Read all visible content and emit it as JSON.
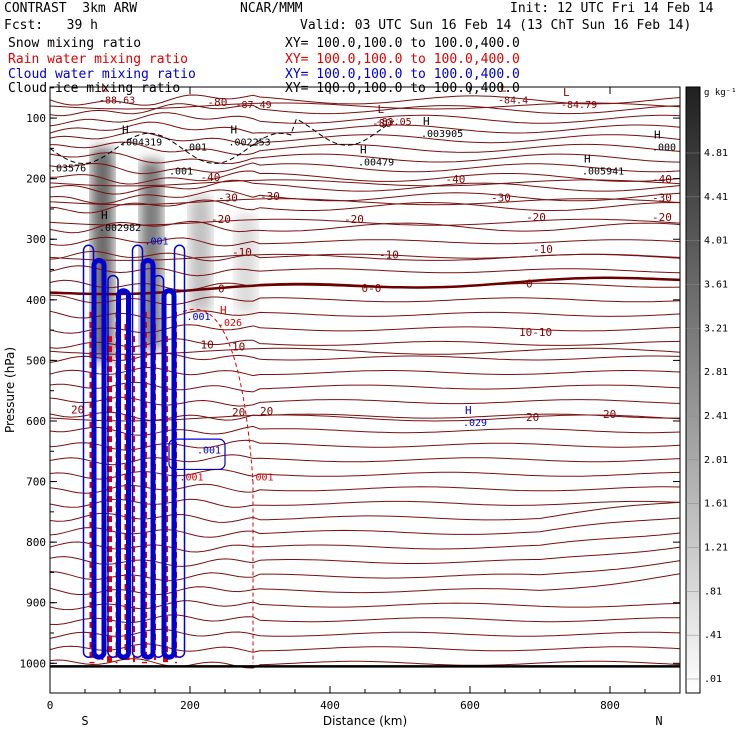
{
  "header": {
    "model": "CONTRAST  3km ARW",
    "forecast": "Fcst:   39 h",
    "center": "NCAR/MMM",
    "init": "Init: 12 UTC Fri 14 Feb 14",
    "valid": "Valid: 03 UTC Sun 16 Feb 14 (13 ChT Sun 16 Feb 14)"
  },
  "fields": [
    {
      "label": "Snow mixing ratio",
      "xy": "XY= 100.0,100.0 to 100.0,400.0",
      "color": "#000000"
    },
    {
      "label": "Rain water mixing ratio",
      "xy": "XY= 100.0,100.0 to 100.0,400.0",
      "color": "#e00000"
    },
    {
      "label": "Cloud water mixing ratio",
      "xy": "XY= 100.0,100.0 to 100.0,400.0",
      "color": "#0000d0"
    },
    {
      "label": "Cloud ice mixing ratio",
      "xy": "XY= 100.0,100.0 to 100.0,400.0",
      "color": "#000000"
    }
  ],
  "chart_data": {
    "type": "contour",
    "xlabel": "Distance (km)",
    "ylabel": "Pressure (hPa)",
    "xlim": [
      0,
      900
    ],
    "ylim": [
      50,
      1050
    ],
    "x_ticks": [
      0,
      200,
      400,
      600,
      800
    ],
    "y_ticks": [
      100,
      200,
      300,
      400,
      500,
      600,
      700,
      800,
      900,
      1000
    ],
    "x_endpoints": [
      "S",
      "N"
    ],
    "colorbar": {
      "unit": "g kg⁻¹",
      "levels": [
        "4.81",
        "4.41",
        "4.01",
        "3.61",
        "3.21",
        "2.81",
        "2.41",
        "2.01",
        "1.61",
        "1.21",
        ".81",
        ".41",
        ".01"
      ]
    },
    "temperature_contours": [
      {
        "label": "-80",
        "p": 80
      },
      {
        "label": "-40",
        "p": 207
      },
      {
        "label": "-30",
        "p": 238
      },
      {
        "label": "-20",
        "p": 272
      },
      {
        "label": "-10",
        "p": 330
      },
      {
        "label": "0",
        "p": 388
      },
      {
        "label": "10",
        "p": 485
      },
      {
        "label": "20",
        "p": 595
      }
    ],
    "contour_labels": [
      {
        "text": "-80",
        "x": 225,
        "p": 80,
        "color": "#800000"
      },
      {
        "text": "-80",
        "x": 460,
        "p": 115,
        "color": "#800000"
      },
      {
        "text": "-40",
        "x": 215,
        "p": 204,
        "color": "#800000"
      },
      {
        "text": "-40",
        "x": 565,
        "p": 207,
        "color": "#800000"
      },
      {
        "text": "-40",
        "x": 860,
        "p": 207,
        "color": "#800000"
      },
      {
        "text": "-30",
        "x": 240,
        "p": 238,
        "color": "#800000"
      },
      {
        "text": "-30",
        "x": 300,
        "p": 235,
        "color": "#800000"
      },
      {
        "text": "-30",
        "x": 630,
        "p": 238,
        "color": "#800000"
      },
      {
        "text": "-30",
        "x": 860,
        "p": 238,
        "color": "#800000"
      },
      {
        "text": "-20",
        "x": 230,
        "p": 273,
        "color": "#800000"
      },
      {
        "text": "-20",
        "x": 420,
        "p": 273,
        "color": "#800000"
      },
      {
        "text": "-20",
        "x": 680,
        "p": 270,
        "color": "#800000"
      },
      {
        "text": "-20",
        "x": 860,
        "p": 270,
        "color": "#800000"
      },
      {
        "text": "-10",
        "x": 260,
        "p": 328,
        "color": "#800000"
      },
      {
        "text": "-10",
        "x": 470,
        "p": 332,
        "color": "#800000"
      },
      {
        "text": "-10",
        "x": 690,
        "p": 323,
        "color": "#800000"
      },
      {
        "text": "0-0",
        "x": 445,
        "p": 387,
        "color": "#800000"
      },
      {
        "text": "0",
        "x": 680,
        "p": 380,
        "color": "#800000"
      },
      {
        "text": "0",
        "x": 240,
        "p": 388,
        "color": "#800000"
      },
      {
        "text": "10",
        "x": 215,
        "p": 480,
        "color": "#800000"
      },
      {
        "text": "10",
        "x": 260,
        "p": 484,
        "color": "#800000"
      },
      {
        "text": "10-10",
        "x": 670,
        "p": 460,
        "color": "#800000"
      },
      {
        "text": "20",
        "x": 260,
        "p": 592,
        "color": "#800000"
      },
      {
        "text": "20",
        "x": 300,
        "p": 590,
        "color": "#800000"
      },
      {
        "text": "20",
        "x": 680,
        "p": 600,
        "color": "#800000"
      },
      {
        "text": "20",
        "x": 790,
        "p": 595,
        "color": "#800000"
      },
      {
        "text": "20",
        "x": 30,
        "p": 588,
        "color": "#800000"
      }
    ],
    "extrema": [
      {
        "mark": "L",
        "value": "-88.63",
        "x": 70,
        "p": 73,
        "color": "#800000"
      },
      {
        "mark": "",
        "value": "-87.49",
        "x": 265,
        "p": 80,
        "color": "#800000"
      },
      {
        "mark": "L",
        "value": "-83.05",
        "x": 465,
        "p": 108,
        "color": "#800000"
      },
      {
        "mark": "L",
        "value": "-84.4",
        "x": 640,
        "p": 73,
        "color": "#800000"
      },
      {
        "mark": "L",
        "value": "-84.79",
        "x": 730,
        "p": 80,
        "color": "#800000"
      },
      {
        "mark": "H",
        "value": ".004319",
        "x": 100,
        "p": 142,
        "color": "#000000"
      },
      {
        "mark": "",
        "value": ".001",
        "x": 190,
        "p": 150,
        "color": "#000000"
      },
      {
        "mark": "H",
        "value": ".002253",
        "x": 255,
        "p": 142,
        "color": "#000000"
      },
      {
        "mark": "H",
        "value": ".003905",
        "x": 530,
        "p": 128,
        "color": "#000000"
      },
      {
        "mark": "H",
        "value": ".000",
        "x": 860,
        "p": 150,
        "color": "#000000"
      },
      {
        "mark": "",
        "value": ".03576",
        "x": 0,
        "p": 185,
        "color": "#000000"
      },
      {
        "mark": "",
        "value": ".001",
        "x": 170,
        "p": 190,
        "color": "#000000"
      },
      {
        "mark": "H",
        "value": ".00479",
        "x": 440,
        "p": 175,
        "color": "#000000"
      },
      {
        "mark": "H",
        "value": ".005941",
        "x": 760,
        "p": 190,
        "color": "#000000"
      },
      {
        "mark": "H",
        "value": ".002982",
        "x": 70,
        "p": 283,
        "color": "#000000"
      },
      {
        "mark": "",
        "value": ".001",
        "x": 135,
        "p": 305,
        "color": "#0000d0"
      },
      {
        "mark": "",
        "value": ".001",
        "x": 195,
        "p": 430,
        "color": "#0000d0"
      },
      {
        "mark": "H",
        "value": ".026",
        "x": 240,
        "p": 440,
        "color": "#e00000"
      },
      {
        "mark": "H",
        "value": ".029",
        "x": 590,
        "p": 605,
        "color": "#0000d0"
      },
      {
        "mark": "",
        "value": ".001",
        "x": 210,
        "p": 650,
        "color": "#0000d0"
      },
      {
        "mark": "",
        "value": ".001",
        "x": 185,
        "p": 695,
        "color": "#e00000"
      },
      {
        "mark": "",
        "value": ".001",
        "x": 285,
        "p": 695,
        "color": "#e00000"
      }
    ],
    "snow_columns": [
      {
        "x": 75,
        "p_top": 150,
        "p_bottom": 500,
        "intensity": 0.85
      },
      {
        "x": 145,
        "p_top": 170,
        "p_bottom": 480,
        "intensity": 0.75
      },
      {
        "x": 215,
        "p_top": 230,
        "p_bottom": 420,
        "intensity": 0.35
      },
      {
        "x": 280,
        "p_top": 260,
        "p_bottom": 420,
        "intensity": 0.2
      }
    ]
  }
}
